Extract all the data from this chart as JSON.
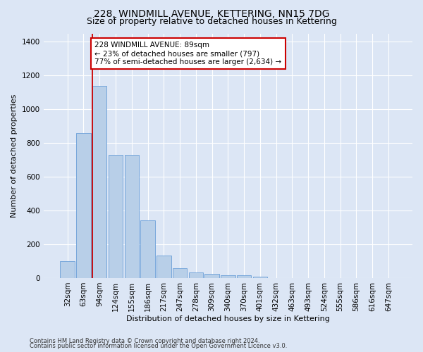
{
  "title_line1": "228, WINDMILL AVENUE, KETTERING, NN15 7DG",
  "title_line2": "Size of property relative to detached houses in Kettering",
  "xlabel": "Distribution of detached houses by size in Kettering",
  "ylabel": "Number of detached properties",
  "categories": [
    "32sqm",
    "63sqm",
    "94sqm",
    "124sqm",
    "155sqm",
    "186sqm",
    "217sqm",
    "247sqm",
    "278sqm",
    "309sqm",
    "340sqm",
    "370sqm",
    "401sqm",
    "432sqm",
    "463sqm",
    "493sqm",
    "524sqm",
    "555sqm",
    "586sqm",
    "616sqm",
    "647sqm"
  ],
  "values": [
    100,
    860,
    1140,
    730,
    730,
    340,
    135,
    60,
    35,
    25,
    18,
    18,
    10,
    0,
    0,
    0,
    0,
    0,
    0,
    0,
    0
  ],
  "bar_color": "#b8cfe8",
  "bar_edge_color": "#6a9fd8",
  "red_line_color": "#cc0000",
  "annotation_text": "228 WINDMILL AVENUE: 89sqm\n← 23% of detached houses are smaller (797)\n77% of semi-detached houses are larger (2,634) →",
  "annotation_box_color": "#ffffff",
  "annotation_box_edge": "#cc0000",
  "property_bin_index": 2,
  "ylim": [
    0,
    1450
  ],
  "yticks": [
    0,
    200,
    400,
    600,
    800,
    1000,
    1200,
    1400
  ],
  "footer_line1": "Contains HM Land Registry data © Crown copyright and database right 2024.",
  "footer_line2": "Contains public sector information licensed under the Open Government Licence v3.0.",
  "bg_color": "#dce6f5",
  "grid_color": "#ffffff",
  "title1_fontsize": 10,
  "title2_fontsize": 9,
  "ylabel_fontsize": 8,
  "xlabel_fontsize": 8,
  "tick_fontsize": 7.5,
  "footer_fontsize": 6,
  "annot_fontsize": 7.5
}
